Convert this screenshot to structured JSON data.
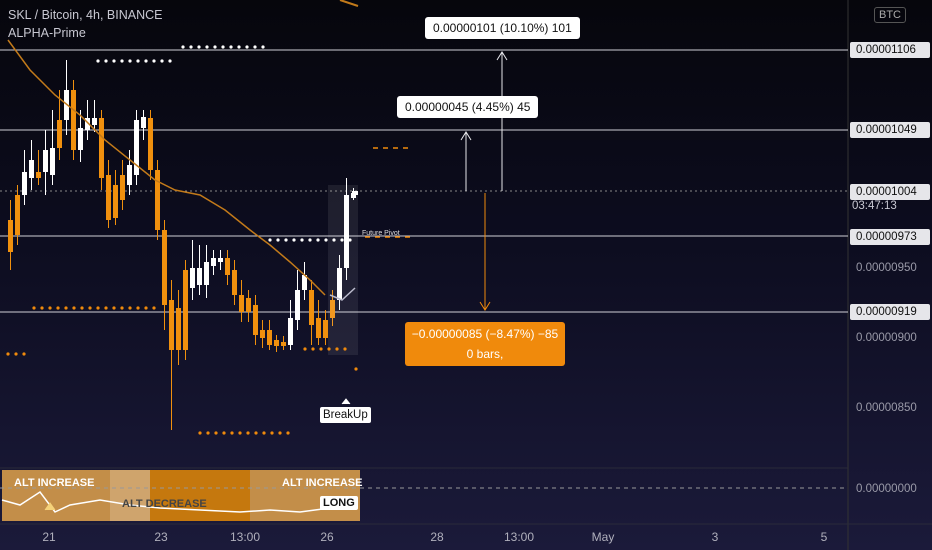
{
  "header": {
    "symbol_line": "SKL / Bitcoin, 4h, BINANCE",
    "indicator": "ALPHA-Prime",
    "currency_button": "BTC"
  },
  "price_axis": {
    "highlighted": [
      "0.00001106",
      "0.00001049",
      "0.00001004",
      "0.00000973",
      "0.00000919"
    ],
    "plain": [
      "0.00000950",
      "0.00000900",
      "0.00000850"
    ],
    "countdown": "03:47:13",
    "oscillator_zero": "0.00000000"
  },
  "annotations": {
    "target_high": "0.00000101 (10.10%) 101",
    "target_mid": "0.00000045 (4.45%) 45",
    "drop_line1": "−0.00000085 (−8.47%) −85",
    "drop_line2": "0 bars,",
    "future_pivot": "Future Pivot",
    "breakup": "BreakUp"
  },
  "oscillator": {
    "alt_increase_left": "ALT INCREASE",
    "alt_increase_right": "ALT INCREASE",
    "alt_decrease": "ALT DECREASE",
    "long": "LONG"
  },
  "time_axis": [
    "21",
    "23",
    "13:00",
    "26",
    "28",
    "13:00",
    "May",
    "3",
    "5"
  ],
  "colors": {
    "up_candle": "#ffffff",
    "down_candle": "#f0900e",
    "accent_orange": "#f08a0c"
  }
}
